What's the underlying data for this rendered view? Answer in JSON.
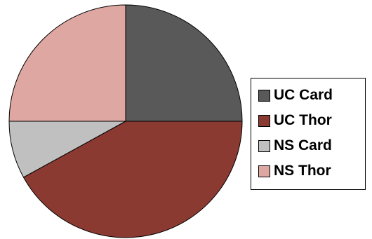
{
  "chart_data": {
    "type": "pie",
    "slices": [
      {
        "name": "UC Card",
        "value": 25,
        "color": "#595959"
      },
      {
        "name": "UC Thor",
        "value": 42,
        "color": "#8b3a32"
      },
      {
        "name": "NS Card",
        "value": 8,
        "color": "#c0c0c0"
      },
      {
        "name": "NS Thor",
        "value": 25,
        "color": "#dea7a2"
      }
    ],
    "start_angle_deg": 0,
    "direction": "clockwise",
    "legend_position": "right",
    "title": ""
  }
}
